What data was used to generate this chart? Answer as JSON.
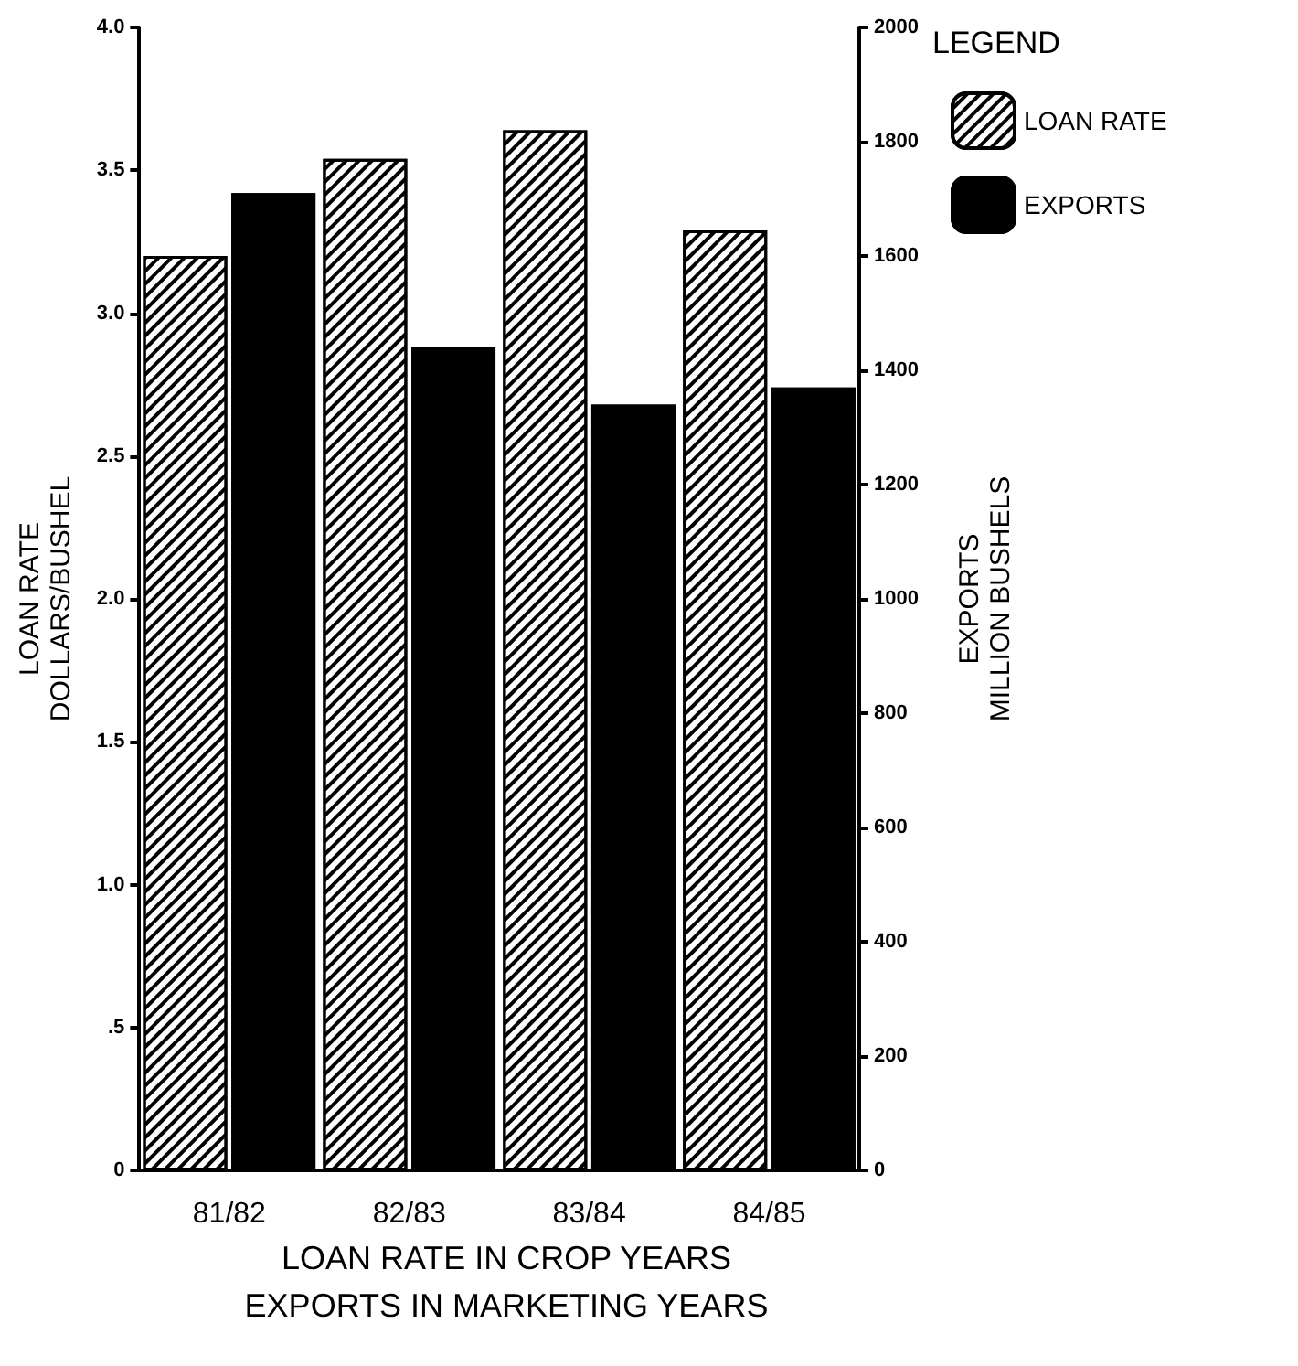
{
  "chart_data": {
    "type": "bar",
    "xlabel": "LOAN RATE IN CROP YEARS\nEXPORTS IN MARKETING YEARS",
    "ylabel": "LOAN RATE\nDOLLARS/BUSHEL",
    "y2label": "EXPORTS\nMILLION BUSHELS",
    "legend_title": "LEGEND",
    "categories": [
      "81/82",
      "82/83",
      "83/84",
      "84/85"
    ],
    "series": [
      {
        "name": "LOAN RATE",
        "color": "#ffffff",
        "values": [
          3.2,
          3.54,
          3.64,
          3.29
        ]
      },
      {
        "name": "EXPORTS",
        "color": "#000000",
        "axis": "y2",
        "values": [
          1710,
          1440,
          1340,
          1370
        ]
      }
    ],
    "ylim": [
      0,
      4
    ],
    "yticks": [
      0,
      {
        "value": 0.5,
        "label": ".5"
      },
      {
        "value": 1,
        "label": "1.0"
      },
      1.5,
      {
        "value": 2,
        "label": "2.0"
      },
      2.5,
      {
        "value": 3,
        "label": "3.0"
      },
      3.5,
      {
        "value": 4,
        "label": "4.0"
      }
    ],
    "y2lim": [
      0,
      2000
    ],
    "y2ticks": [
      0,
      200,
      400,
      600,
      800,
      1000,
      1200,
      1400,
      1600,
      1800,
      2000
    ],
    "grid": false,
    "legend": "top right"
  }
}
